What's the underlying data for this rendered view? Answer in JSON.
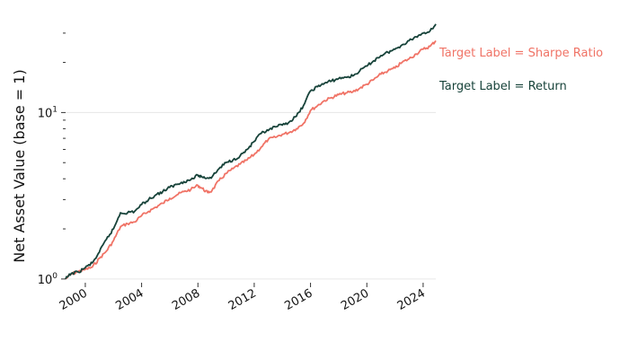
{
  "chart_data": {
    "type": "line",
    "title": "",
    "xlabel": "",
    "ylabel": "Net Asset Value (base = 1)",
    "yscale": "log",
    "grid": "horizontal at major y ticks",
    "legend_placement": "labels at right end of lines",
    "xlim": [
      1998.6,
      2024.9
    ],
    "ylim": [
      0.95,
      37
    ],
    "x_ticks": [
      {
        "value": 2000,
        "label": "2000"
      },
      {
        "value": 2004,
        "label": "2004"
      },
      {
        "value": 2008,
        "label": "2008"
      },
      {
        "value": 2012,
        "label": "2012"
      },
      {
        "value": 2016,
        "label": "2016"
      },
      {
        "value": 2020,
        "label": "2020"
      },
      {
        "value": 2024,
        "label": "2024"
      }
    ],
    "y_major_ticks": [
      {
        "value": 1,
        "base": "10",
        "exponent": "0"
      },
      {
        "value": 10,
        "base": "10",
        "exponent": "1"
      }
    ],
    "y_minor_ticks": [
      2,
      3,
      4,
      5,
      6,
      7,
      8,
      9,
      20,
      30
    ],
    "series": [
      {
        "name": "Target Label = Sharpe Ratio",
        "color": "#f07366",
        "x": [
          1998.6,
          1999.0,
          1999.5,
          2000.0,
          2000.5,
          2001.0,
          2001.5,
          2002.0,
          2002.5,
          2003.0,
          2003.5,
          2004.0,
          2004.5,
          2005.0,
          2005.5,
          2006.0,
          2006.5,
          2007.0,
          2007.5,
          2008.0,
          2008.3,
          2008.7,
          2009.0,
          2009.5,
          2010.0,
          2010.5,
          2011.0,
          2011.5,
          2012.0,
          2012.5,
          2013.0,
          2013.5,
          2014.0,
          2014.5,
          2015.0,
          2015.5,
          2016.0,
          2016.5,
          2017.0,
          2017.5,
          2018.0,
          2018.5,
          2019.0,
          2019.5,
          2020.0,
          2020.5,
          2021.0,
          2021.5,
          2022.0,
          2022.5,
          2023.0,
          2023.5,
          2024.0,
          2024.5,
          2024.9
        ],
        "values": [
          1.0,
          1.07,
          1.11,
          1.14,
          1.18,
          1.33,
          1.47,
          1.7,
          2.06,
          2.15,
          2.2,
          2.4,
          2.55,
          2.7,
          2.85,
          3.05,
          3.2,
          3.35,
          3.45,
          3.65,
          3.5,
          3.3,
          3.4,
          3.9,
          4.3,
          4.6,
          4.9,
          5.2,
          5.6,
          6.2,
          6.9,
          7.1,
          7.4,
          7.6,
          8.0,
          8.6,
          10.3,
          11.0,
          11.8,
          12.3,
          12.8,
          13.1,
          13.3,
          14.0,
          14.8,
          15.8,
          17.0,
          17.8,
          18.5,
          20.0,
          21.0,
          22.5,
          24.0,
          25.0,
          27.0
        ]
      },
      {
        "name": "Target Label = Return",
        "color": "#17433a",
        "x": [
          1998.6,
          1999.0,
          1999.5,
          2000.0,
          2000.5,
          2001.0,
          2001.5,
          2002.0,
          2002.5,
          2003.0,
          2003.5,
          2004.0,
          2004.5,
          2005.0,
          2005.5,
          2006.0,
          2006.5,
          2007.0,
          2007.5,
          2008.0,
          2008.3,
          2008.7,
          2009.0,
          2009.5,
          2010.0,
          2010.5,
          2011.0,
          2011.5,
          2012.0,
          2012.5,
          2013.0,
          2013.5,
          2014.0,
          2014.5,
          2015.0,
          2015.5,
          2016.0,
          2016.5,
          2017.0,
          2017.5,
          2018.0,
          2018.5,
          2019.0,
          2019.5,
          2020.0,
          2020.5,
          2021.0,
          2021.5,
          2022.0,
          2022.5,
          2023.0,
          2023.5,
          2024.0,
          2024.5,
          2024.9
        ],
        "values": [
          1.0,
          1.08,
          1.1,
          1.17,
          1.25,
          1.45,
          1.73,
          2.0,
          2.5,
          2.5,
          2.55,
          2.8,
          3.0,
          3.2,
          3.35,
          3.55,
          3.7,
          3.85,
          3.95,
          4.2,
          4.1,
          4.05,
          4.1,
          4.6,
          5.0,
          5.2,
          5.5,
          6.0,
          6.7,
          7.5,
          7.8,
          8.2,
          8.4,
          8.8,
          9.5,
          11.0,
          13.5,
          14.3,
          15.0,
          15.5,
          16.0,
          16.3,
          16.6,
          17.8,
          19.0,
          20.5,
          22.0,
          23.0,
          24.0,
          25.5,
          27.0,
          28.5,
          30.0,
          31.0,
          34.0
        ]
      }
    ]
  }
}
